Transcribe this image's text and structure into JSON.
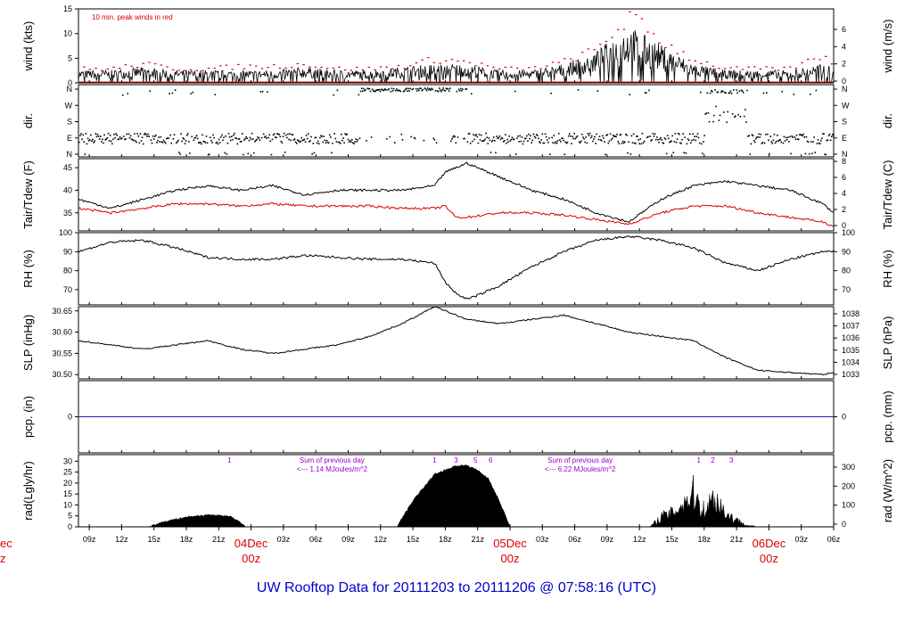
{
  "title": "UW Rooftop Data for 20111203  to  20111206 @ 07:58:16  (UTC)",
  "colors": {
    "trace": "#000000",
    "red": "#dd0000",
    "blue": "#2222cc",
    "purple": "#9900cc",
    "title": "#0000cc"
  },
  "time_axis": {
    "ticks": [
      "09z",
      "12z",
      "15z",
      "18z",
      "21z",
      "00z",
      "03z",
      "06z",
      "09z",
      "12z",
      "15z",
      "18z",
      "21z",
      "00z",
      "03z",
      "06z",
      "09z",
      "12z",
      "15z",
      "18z",
      "21z",
      "00z",
      "03z",
      "06z"
    ],
    "day_labels": [
      {
        "label": "04Dec",
        "sub": "00z"
      },
      {
        "label": "05Dec",
        "sub": "00z"
      },
      {
        "label": "06Dec",
        "sub": "00z"
      }
    ],
    "left_cut_label": "ec",
    "left_cut_sub": "z"
  },
  "chart_data": [
    {
      "type": "line",
      "name_key": "wind",
      "ylabel_left": "wind (kts)",
      "ylabel_right": "wind (m/s)",
      "annotation": "10 min. peak winds in red",
      "ylim": [
        0,
        15
      ],
      "left_ticks": [
        "0",
        "5",
        "10",
        "15"
      ],
      "right_ticks": [
        "0",
        "2",
        "4",
        "6"
      ],
      "x": [
        0,
        3,
        6,
        9,
        12,
        15,
        18,
        21,
        24,
        27,
        30,
        33,
        36,
        39,
        42,
        45,
        48,
        51,
        54,
        57,
        60,
        63,
        66,
        69,
        70
      ],
      "values": [
        2,
        2,
        2.5,
        2,
        2,
        2,
        2,
        2.5,
        2,
        2,
        2.5,
        3,
        3,
        2,
        2,
        3,
        5,
        9,
        6,
        3,
        2,
        2,
        2,
        3,
        2.5
      ],
      "peak_values": [
        3,
        3,
        4,
        3,
        3,
        3.5,
        3.5,
        4,
        3,
        3,
        3.5,
        5,
        4.5,
        3,
        3,
        4.5,
        7,
        14,
        9,
        5,
        3,
        3,
        3,
        6,
        4
      ]
    },
    {
      "type": "scatter",
      "name_key": "dir",
      "ylabel_left": "dir.",
      "ylabel_right": "dir.",
      "left_ticks": [
        "N",
        "E",
        "S",
        "W",
        "N"
      ],
      "right_ticks": [
        "N",
        "E",
        "S",
        "W",
        "N"
      ]
    },
    {
      "type": "line",
      "name_key": "temp",
      "ylabel_left": "Tair/Tdew (F)",
      "ylabel_right": "Tair/Tdew (C)",
      "ylim": [
        31,
        47
      ],
      "left_ticks": [
        "35",
        "40",
        "45"
      ],
      "right_ticks": [
        "0",
        "2",
        "4",
        "6",
        "8"
      ],
      "x": [
        0,
        3,
        6,
        9,
        12,
        15,
        18,
        21,
        24,
        27,
        30,
        33,
        34,
        35,
        36,
        39,
        42,
        45,
        48,
        51,
        54,
        57,
        60,
        63,
        66,
        69,
        70
      ],
      "series": [
        {
          "key": "tair",
          "values": [
            38,
            36,
            38,
            40,
            41,
            40,
            41,
            39,
            40,
            40,
            40,
            41,
            44,
            45,
            46,
            43,
            40,
            38,
            35,
            33,
            38,
            41,
            42,
            41,
            40,
            37,
            35
          ]
        },
        {
          "key": "tdew",
          "values": [
            36,
            35,
            36,
            37,
            37,
            36.5,
            37,
            36.5,
            36.5,
            36.5,
            36,
            36,
            36.5,
            34,
            34,
            35,
            35,
            34.5,
            33.5,
            32.5,
            35,
            36.5,
            36.5,
            35,
            34,
            33,
            32
          ]
        }
      ]
    },
    {
      "type": "line",
      "name_key": "rh",
      "ylabel_left": "RH (%)",
      "ylabel_right": "RH (%)",
      "ylim": [
        62,
        100
      ],
      "left_ticks": [
        "70",
        "80",
        "90",
        "100"
      ],
      "right_ticks": [
        "70",
        "80",
        "90",
        "100"
      ],
      "x": [
        0,
        3,
        6,
        9,
        12,
        15,
        18,
        21,
        24,
        27,
        30,
        33,
        34,
        35,
        36,
        37,
        39,
        42,
        45,
        48,
        51,
        54,
        57,
        60,
        63,
        66,
        69,
        70
      ],
      "values": [
        90,
        95,
        96,
        92,
        87,
        86,
        86,
        88,
        87,
        86,
        86,
        84,
        74,
        68,
        65,
        67,
        72,
        82,
        90,
        96,
        98,
        96,
        92,
        84,
        80,
        86,
        90,
        90
      ]
    },
    {
      "type": "line",
      "name_key": "slp",
      "ylabel_left": "SLP (inHg)",
      "ylabel_right": "SLP (hPa)",
      "ylim": [
        30.49,
        30.66
      ],
      "left_ticks": [
        "30.50",
        "30.55",
        "30.60",
        "30.65"
      ],
      "right_ticks": [
        "1033",
        "1034",
        "1035",
        "1036",
        "1037",
        "1038"
      ],
      "x": [
        0,
        3,
        6,
        9,
        12,
        15,
        18,
        21,
        24,
        27,
        30,
        33,
        36,
        39,
        42,
        45,
        48,
        51,
        54,
        57,
        60,
        63,
        66,
        69,
        70
      ],
      "values": [
        30.58,
        30.57,
        30.56,
        30.57,
        30.58,
        30.56,
        30.55,
        30.56,
        30.57,
        30.59,
        30.62,
        30.66,
        30.63,
        30.62,
        30.63,
        30.64,
        30.62,
        30.6,
        30.59,
        30.58,
        30.54,
        30.51,
        30.505,
        30.5,
        30.505
      ]
    },
    {
      "type": "line",
      "name_key": "pcp",
      "ylabel_left": "pcp. (in)",
      "ylabel_right": "pcp. (mm)",
      "ylim": [
        -1,
        1
      ],
      "left_ticks": [
        "0"
      ],
      "right_ticks": [
        "0"
      ],
      "x": [
        0,
        70
      ],
      "values": [
        0,
        0
      ]
    },
    {
      "type": "area",
      "name_key": "rad",
      "ylabel_left": "rad(Lgly/hr)",
      "ylabel_right": "rad (W/m^2)",
      "ylim": [
        0,
        33
      ],
      "left_ticks": [
        "0",
        "5",
        "10",
        "15",
        "20",
        "25",
        "30"
      ],
      "right_ticks": [
        "0",
        "100",
        "200",
        "300"
      ],
      "x": [
        6.5,
        8,
        10,
        12,
        14,
        15,
        15.5,
        29.5,
        31,
        33,
        35,
        36,
        37,
        38,
        39,
        40,
        53,
        54,
        55,
        56,
        57,
        58,
        59,
        60,
        61,
        62,
        63
      ],
      "values": [
        0,
        2.5,
        4.5,
        5.5,
        5,
        2,
        0,
        0,
        12,
        24,
        28,
        28,
        26,
        22,
        12,
        0,
        0,
        6,
        8,
        14,
        20,
        10,
        18,
        8,
        4,
        1,
        0
      ],
      "annotations": [
        {
          "text": "Sum of previous day",
          "line2": "<--- 1.14 MJoules/m^2",
          "at": 23.5
        },
        {
          "text": "Sum of previous day",
          "line2": "<--- 6.22 MJoules/m^2",
          "at": 46.5
        }
      ],
      "hour_marks": [
        {
          "label": "1",
          "at": 14
        },
        {
          "label": "1",
          "at": 33
        },
        {
          "label": "3",
          "at": 35
        },
        {
          "label": "5",
          "at": 36.8
        },
        {
          "label": "6",
          "at": 38.2
        },
        {
          "label": "1",
          "at": 57.5
        },
        {
          "label": "2",
          "at": 58.8
        },
        {
          "label": "3",
          "at": 60.5
        }
      ]
    }
  ]
}
